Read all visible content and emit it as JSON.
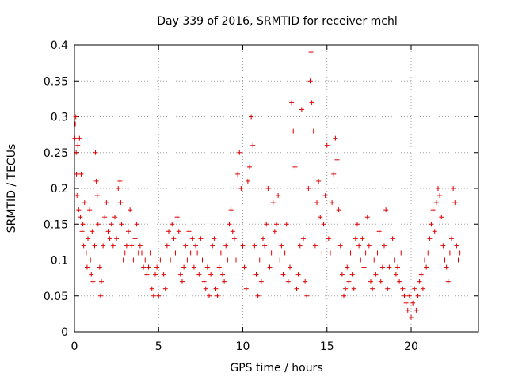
{
  "chart_data": {
    "type": "scatter",
    "title": "Day 339 of 2016, SRMTID for receiver mchl",
    "xlabel": "GPS time / hours",
    "ylabel": "SRMTID / TECUs",
    "xlim": [
      0,
      24
    ],
    "ylim": [
      0,
      0.4
    ],
    "x_ticks": [
      0,
      5,
      10,
      15,
      20
    ],
    "x_tick_labels": [
      "0",
      "5",
      "10",
      "15",
      "20"
    ],
    "y_ticks": [
      0,
      0.05,
      0.1,
      0.15,
      0.2,
      0.25,
      0.3,
      0.35,
      0.4
    ],
    "y_tick_labels": [
      "0",
      "0.05",
      "0.1",
      "0.15",
      "0.2",
      "0.25",
      "0.3",
      "0.35",
      "0.4"
    ],
    "grid": true,
    "marker": "+",
    "color": "#e00000",
    "series": [
      {
        "name": "SRMTID",
        "points": [
          [
            0.02,
            0.27
          ],
          [
            0.05,
            0.29
          ],
          [
            0.08,
            0.3
          ],
          [
            0.1,
            0.25
          ],
          [
            0.12,
            0.22
          ],
          [
            0.15,
            0.19
          ],
          [
            0.2,
            0.26
          ],
          [
            0.25,
            0.17
          ],
          [
            0.3,
            0.27
          ],
          [
            0.35,
            0.16
          ],
          [
            0.4,
            0.22
          ],
          [
            0.45,
            0.14
          ],
          [
            0.5,
            0.15
          ],
          [
            0.55,
            0.12
          ],
          [
            0.6,
            0.18
          ],
          [
            0.7,
            0.11
          ],
          [
            0.75,
            0.09
          ],
          [
            0.8,
            0.13
          ],
          [
            0.9,
            0.17
          ],
          [
            0.95,
            0.1
          ],
          [
            1.0,
            0.08
          ],
          [
            1.05,
            0.14
          ],
          [
            1.1,
            0.07
          ],
          [
            1.2,
            0.12
          ],
          [
            1.25,
            0.25
          ],
          [
            1.3,
            0.21
          ],
          [
            1.35,
            0.19
          ],
          [
            1.4,
            0.15
          ],
          [
            1.5,
            0.09
          ],
          [
            1.55,
            0.05
          ],
          [
            1.6,
            0.07
          ],
          [
            1.7,
            0.12
          ],
          [
            1.8,
            0.16
          ],
          [
            1.9,
            0.18
          ],
          [
            2.0,
            0.14
          ],
          [
            2.1,
            0.13
          ],
          [
            2.2,
            0.15
          ],
          [
            2.3,
            0.12
          ],
          [
            2.4,
            0.16
          ],
          [
            2.5,
            0.13
          ],
          [
            2.6,
            0.2
          ],
          [
            2.7,
            0.21
          ],
          [
            2.75,
            0.18
          ],
          [
            2.8,
            0.15
          ],
          [
            2.9,
            0.1
          ],
          [
            3.0,
            0.11
          ],
          [
            3.1,
            0.12
          ],
          [
            3.2,
            0.14
          ],
          [
            3.3,
            0.17
          ],
          [
            3.4,
            0.12
          ],
          [
            3.5,
            0.1
          ],
          [
            3.6,
            0.13
          ],
          [
            3.7,
            0.15
          ],
          [
            3.8,
            0.11
          ],
          [
            3.9,
            0.12
          ],
          [
            4.0,
            0.11
          ],
          [
            4.1,
            0.09
          ],
          [
            4.2,
            0.1
          ],
          [
            4.3,
            0.08
          ],
          [
            4.4,
            0.09
          ],
          [
            4.5,
            0.11
          ],
          [
            4.6,
            0.06
          ],
          [
            4.7,
            0.05
          ],
          [
            4.8,
            0.08
          ],
          [
            4.9,
            0.09
          ],
          [
            5.0,
            0.05
          ],
          [
            5.1,
            0.1
          ],
          [
            5.2,
            0.11
          ],
          [
            5.3,
            0.08
          ],
          [
            5.4,
            0.06
          ],
          [
            5.5,
            0.12
          ],
          [
            5.6,
            0.14
          ],
          [
            5.7,
            0.1
          ],
          [
            5.8,
            0.15
          ],
          [
            5.9,
            0.13
          ],
          [
            6.0,
            0.11
          ],
          [
            6.1,
            0.16
          ],
          [
            6.2,
            0.14
          ],
          [
            6.3,
            0.08
          ],
          [
            6.4,
            0.07
          ],
          [
            6.5,
            0.09
          ],
          [
            6.6,
            0.12
          ],
          [
            6.7,
            0.1
          ],
          [
            6.8,
            0.14
          ],
          [
            6.9,
            0.11
          ],
          [
            7.0,
            0.13
          ],
          [
            7.1,
            0.09
          ],
          [
            7.2,
            0.12
          ],
          [
            7.3,
            0.11
          ],
          [
            7.4,
            0.08
          ],
          [
            7.5,
            0.13
          ],
          [
            7.6,
            0.1
          ],
          [
            7.7,
            0.07
          ],
          [
            7.8,
            0.06
          ],
          [
            7.9,
            0.09
          ],
          [
            8.0,
            0.05
          ],
          [
            8.1,
            0.08
          ],
          [
            8.2,
            0.12
          ],
          [
            8.3,
            0.13
          ],
          [
            8.4,
            0.06
          ],
          [
            8.5,
            0.05
          ],
          [
            8.6,
            0.09
          ],
          [
            8.7,
            0.11
          ],
          [
            8.8,
            0.08
          ],
          [
            8.9,
            0.07
          ],
          [
            9.0,
            0.12
          ],
          [
            9.1,
            0.1
          ],
          [
            9.2,
            0.15
          ],
          [
            9.3,
            0.17
          ],
          [
            9.4,
            0.14
          ],
          [
            9.5,
            0.13
          ],
          [
            9.6,
            0.1
          ],
          [
            9.7,
            0.22
          ],
          [
            9.8,
            0.25
          ],
          [
            9.9,
            0.2
          ],
          [
            10.0,
            0.12
          ],
          [
            10.1,
            0.09
          ],
          [
            10.2,
            0.06
          ],
          [
            10.3,
            0.21
          ],
          [
            10.4,
            0.23
          ],
          [
            10.5,
            0.3
          ],
          [
            10.6,
            0.26
          ],
          [
            10.7,
            0.12
          ],
          [
            10.8,
            0.08
          ],
          [
            10.9,
            0.05
          ],
          [
            11.0,
            0.1
          ],
          [
            11.1,
            0.07
          ],
          [
            11.2,
            0.13
          ],
          [
            11.3,
            0.12
          ],
          [
            11.4,
            0.15
          ],
          [
            11.5,
            0.2
          ],
          [
            11.6,
            0.09
          ],
          [
            11.7,
            0.11
          ],
          [
            11.8,
            0.18
          ],
          [
            11.9,
            0.14
          ],
          [
            12.0,
            0.15
          ],
          [
            12.1,
            0.19
          ],
          [
            12.2,
            0.1
          ],
          [
            12.3,
            0.12
          ],
          [
            12.4,
            0.08
          ],
          [
            12.5,
            0.11
          ],
          [
            12.6,
            0.15
          ],
          [
            12.7,
            0.07
          ],
          [
            12.8,
            0.09
          ],
          [
            12.9,
            0.32
          ],
          [
            13.0,
            0.28
          ],
          [
            13.1,
            0.23
          ],
          [
            13.2,
            0.06
          ],
          [
            13.3,
            0.08
          ],
          [
            13.4,
            0.12
          ],
          [
            13.5,
            0.31
          ],
          [
            13.6,
            0.13
          ],
          [
            13.7,
            0.07
          ],
          [
            13.8,
            0.05
          ],
          [
            13.9,
            0.2
          ],
          [
            14.0,
            0.35
          ],
          [
            14.05,
            0.39
          ],
          [
            14.1,
            0.32
          ],
          [
            14.2,
            0.28
          ],
          [
            14.3,
            0.12
          ],
          [
            14.4,
            0.18
          ],
          [
            14.5,
            0.21
          ],
          [
            14.6,
            0.16
          ],
          [
            14.7,
            0.11
          ],
          [
            14.8,
            0.15
          ],
          [
            14.9,
            0.19
          ],
          [
            15.0,
            0.26
          ],
          [
            15.1,
            0.13
          ],
          [
            15.2,
            0.11
          ],
          [
            15.3,
            0.18
          ],
          [
            15.4,
            0.22
          ],
          [
            15.5,
            0.27
          ],
          [
            15.6,
            0.24
          ],
          [
            15.7,
            0.17
          ],
          [
            15.8,
            0.12
          ],
          [
            15.9,
            0.08
          ],
          [
            16.0,
            0.05
          ],
          [
            16.1,
            0.06
          ],
          [
            16.2,
            0.09
          ],
          [
            16.3,
            0.07
          ],
          [
            16.4,
            0.11
          ],
          [
            16.5,
            0.08
          ],
          [
            16.6,
            0.06
          ],
          [
            16.7,
            0.13
          ],
          [
            16.8,
            0.15
          ],
          [
            16.9,
            0.12
          ],
          [
            17.0,
            0.1
          ],
          [
            17.1,
            0.13
          ],
          [
            17.2,
            0.09
          ],
          [
            17.3,
            0.11
          ],
          [
            17.4,
            0.16
          ],
          [
            17.5,
            0.12
          ],
          [
            17.6,
            0.07
          ],
          [
            17.7,
            0.06
          ],
          [
            17.8,
            0.1
          ],
          [
            17.9,
            0.08
          ],
          [
            18.0,
            0.11
          ],
          [
            18.1,
            0.14
          ],
          [
            18.2,
            0.07
          ],
          [
            18.3,
            0.09
          ],
          [
            18.4,
            0.12
          ],
          [
            18.5,
            0.17
          ],
          [
            18.6,
            0.06
          ],
          [
            18.7,
            0.09
          ],
          [
            18.8,
            0.11
          ],
          [
            18.9,
            0.13
          ],
          [
            19.0,
            0.1
          ],
          [
            19.1,
            0.08
          ],
          [
            19.2,
            0.09
          ],
          [
            19.3,
            0.07
          ],
          [
            19.4,
            0.11
          ],
          [
            19.5,
            0.06
          ],
          [
            19.6,
            0.05
          ],
          [
            19.7,
            0.04
          ],
          [
            19.8,
            0.03
          ],
          [
            19.9,
            0.05
          ],
          [
            20.0,
            0.02
          ],
          [
            20.1,
            0.04
          ],
          [
            20.2,
            0.06
          ],
          [
            20.3,
            0.03
          ],
          [
            20.4,
            0.05
          ],
          [
            20.5,
            0.07
          ],
          [
            20.6,
            0.08
          ],
          [
            20.7,
            0.06
          ],
          [
            20.8,
            0.1
          ],
          [
            20.9,
            0.09
          ],
          [
            21.0,
            0.11
          ],
          [
            21.1,
            0.13
          ],
          [
            21.2,
            0.15
          ],
          [
            21.3,
            0.17
          ],
          [
            21.4,
            0.14
          ],
          [
            21.5,
            0.18
          ],
          [
            21.6,
            0.2
          ],
          [
            21.7,
            0.19
          ],
          [
            21.8,
            0.16
          ],
          [
            21.9,
            0.12
          ],
          [
            22.0,
            0.1
          ],
          [
            22.1,
            0.09
          ],
          [
            22.2,
            0.07
          ],
          [
            22.3,
            0.11
          ],
          [
            22.4,
            0.13
          ],
          [
            22.5,
            0.2
          ],
          [
            22.6,
            0.18
          ],
          [
            22.7,
            0.12
          ],
          [
            22.8,
            0.1
          ],
          [
            22.9,
            0.11
          ]
        ]
      }
    ]
  }
}
